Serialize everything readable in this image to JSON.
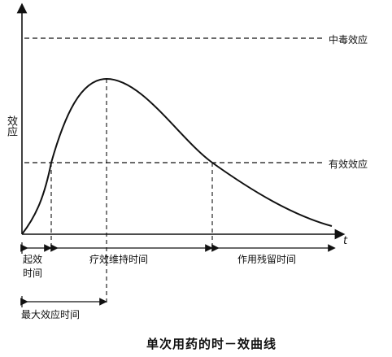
{
  "y_axis_label": "效应",
  "x_axis_label": "t",
  "levels": {
    "toxic": "中毒效应",
    "effective": "有效效应"
  },
  "phases": {
    "onset_line1": "起效",
    "onset_line2": "时间",
    "maintenance": "疗效维持时间",
    "residual": "作用残留时间",
    "peak_time": "最大效应时间"
  },
  "caption": "单次用药的时－效曲线",
  "colors": {
    "ink": "#111111"
  }
}
